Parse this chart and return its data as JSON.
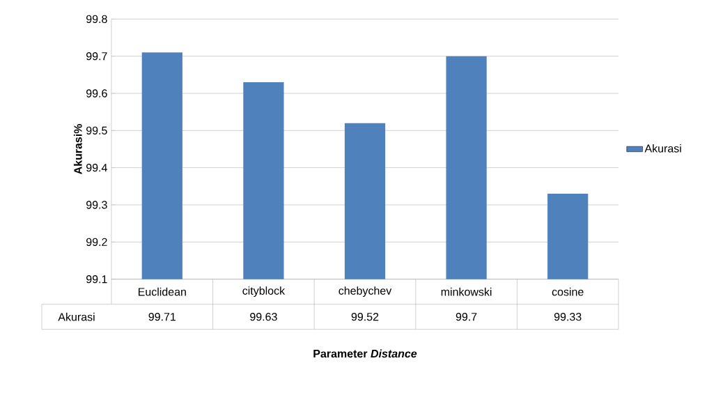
{
  "chart_data": {
    "type": "bar",
    "xlabel": "Parameter *Distance*",
    "ylabel": "Akurasi%",
    "categories": [
      "Euclidean",
      "cityblock",
      "chebychev",
      "minkowski",
      "cosine"
    ],
    "series": [
      {
        "name": "Akurasi",
        "color": "#4f81bd",
        "values": [
          99.71,
          99.63,
          99.52,
          99.7,
          99.33
        ]
      }
    ],
    "ylim": [
      99.1,
      99.8
    ],
    "yticks": [
      99.1,
      99.2,
      99.3,
      99.4,
      99.5,
      99.6,
      99.7,
      99.8
    ],
    "grid": "y",
    "legend": "right",
    "data_labels": true
  }
}
